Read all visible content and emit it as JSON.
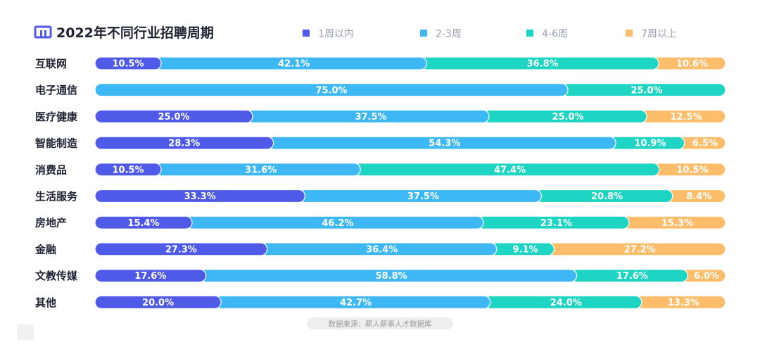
{
  "chart_data": {
    "type": "bar",
    "stacked": true,
    "orientation": "horizontal",
    "title": "2022年不同行业招聘周期",
    "legend_position": "top",
    "categories": [
      "互联网",
      "电子通信",
      "医疗健康",
      "智能制造",
      "消费品",
      "生活服务",
      "房地产",
      "金融",
      "文教传媒",
      "其他"
    ],
    "series": [
      {
        "name": "1周以内",
        "color": "#4f5ae8",
        "values": [
          10.5,
          0,
          25.0,
          28.3,
          10.5,
          33.3,
          15.4,
          27.3,
          17.6,
          20.0
        ]
      },
      {
        "name": "2-3周",
        "color": "#3db8f5",
        "values": [
          42.1,
          75.0,
          37.5,
          54.3,
          31.6,
          37.5,
          46.2,
          36.4,
          58.8,
          42.7
        ]
      },
      {
        "name": "4-6周",
        "color": "#1ed4c2",
        "values": [
          36.8,
          25.0,
          25.0,
          10.9,
          47.4,
          20.8,
          23.1,
          9.1,
          17.6,
          24.0
        ]
      },
      {
        "name": "7周以上",
        "color": "#fdbd6b",
        "values": [
          10.6,
          0,
          12.5,
          6.5,
          10.5,
          8.4,
          15.3,
          27.2,
          6.0,
          13.3
        ]
      }
    ],
    "xlim": [
      0,
      100
    ],
    "value_format": "percent_1dp",
    "source": "数据来源：薪人薪事人才数据库"
  }
}
